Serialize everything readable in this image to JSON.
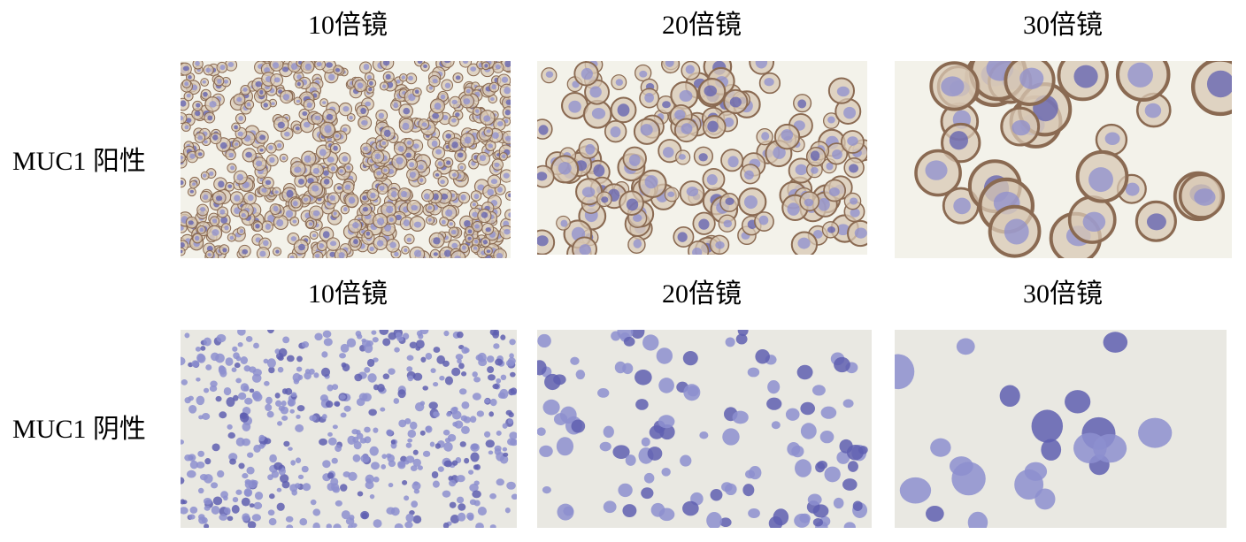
{
  "rows": [
    {
      "label": "MUC1 阳性",
      "stain": "positive",
      "panels": [
        {
          "caption": "10倍镜",
          "magnification": 10
        },
        {
          "caption": "20倍镜",
          "magnification": 20
        },
        {
          "caption": "30倍镜",
          "magnification": 30
        }
      ]
    },
    {
      "label": "MUC1 阴性",
      "stain": "negative",
      "panels": [
        {
          "caption": "10倍镜",
          "magnification": 10
        },
        {
          "caption": "20倍镜",
          "magnification": 20
        },
        {
          "caption": "30倍镜",
          "magnification": 30
        }
      ]
    }
  ],
  "colors": {
    "positive_background": "#f3f2ea",
    "negative_background": "#e9e8e2",
    "membrane_brown": "#8a6a52",
    "cytoplasm_tan": "#d8c8b4",
    "nucleus_blue": "#8d8fcf",
    "nucleus_dark": "#5f5fb0"
  }
}
